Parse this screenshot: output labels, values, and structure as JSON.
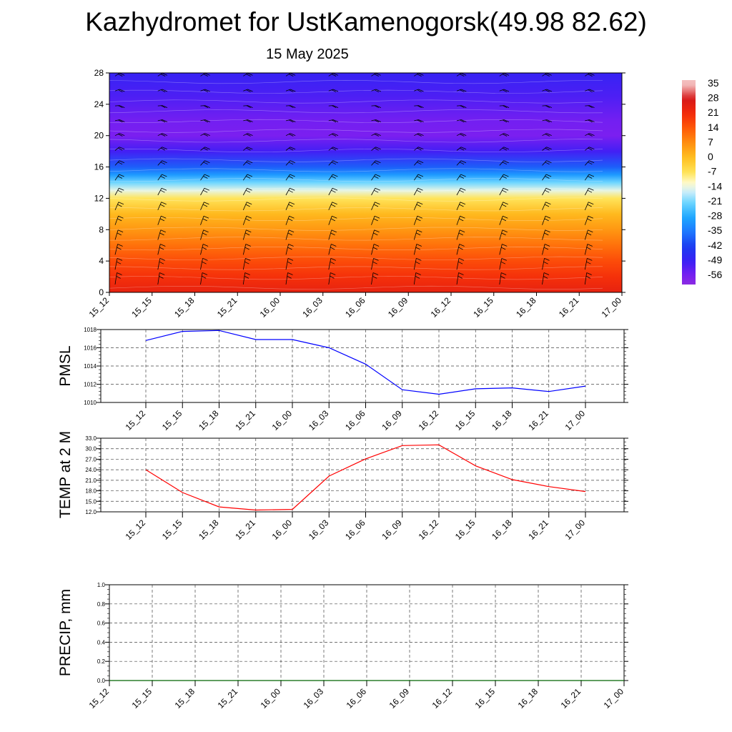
{
  "title": "Kazhydromet for UstKamenogorsk(49.98 82.62)",
  "subtitle": "15 May 2025",
  "time_labels": [
    "15_12",
    "15_15",
    "15_18",
    "15_21",
    "16_00",
    "16_03",
    "16_06",
    "16_09",
    "16_12",
    "16_15",
    "16_18",
    "16_21",
    "17_00"
  ],
  "chart_data": [
    {
      "type": "heatmap",
      "title": "",
      "xlabel": "",
      "ylabel": "",
      "x": [
        "15_12",
        "15_15",
        "15_18",
        "15_21",
        "16_00",
        "16_03",
        "16_06",
        "16_09",
        "16_12",
        "16_15",
        "16_18",
        "16_21",
        "17_00"
      ],
      "y_ticks": [
        0,
        4,
        8,
        12,
        16,
        20,
        24,
        28
      ],
      "ylim": [
        0,
        28
      ],
      "temperature_profile": [
        {
          "y": 0,
          "value": 24
        },
        {
          "y": 2,
          "value": 20
        },
        {
          "y": 4,
          "value": 16
        },
        {
          "y": 6,
          "value": 11
        },
        {
          "y": 8,
          "value": 6
        },
        {
          "y": 10,
          "value": 1
        },
        {
          "y": 12,
          "value": -7
        },
        {
          "y": 13,
          "value": -14
        },
        {
          "y": 14,
          "value": -21
        },
        {
          "y": 15,
          "value": -30
        },
        {
          "y": 16,
          "value": -38
        },
        {
          "y": 18,
          "value": -50
        },
        {
          "y": 20,
          "value": -56
        },
        {
          "y": 22,
          "value": -55
        },
        {
          "y": 25,
          "value": -51
        },
        {
          "y": 28,
          "value": -48
        }
      ],
      "colorbar_labels": [
        "35",
        "28",
        "21",
        "14",
        "7",
        "0",
        "-7",
        "-14",
        "-21",
        "-28",
        "-35",
        "-42",
        "-49",
        "-56"
      ],
      "overlay": "wind barbs"
    },
    {
      "type": "line",
      "ylabel": "PMSL",
      "x": [
        "15_12",
        "15_15",
        "15_18",
        "15_21",
        "16_00",
        "16_03",
        "16_06",
        "16_09",
        "16_12",
        "16_15",
        "16_18",
        "16_21",
        "17_00"
      ],
      "ylim": [
        1010,
        1018
      ],
      "y_ticks": [
        "1010",
        "1012",
        "1014",
        "1016",
        "1018"
      ],
      "series": [
        {
          "color": "#0000ff",
          "values": [
            1016.8,
            1017.8,
            1017.9,
            1016.9,
            1016.9,
            1016.0,
            1014.2,
            1011.4,
            1010.9,
            1011.5,
            1011.6,
            1011.2,
            1011.8
          ]
        }
      ],
      "grid": true
    },
    {
      "type": "line",
      "ylabel": "TEMP at 2 M",
      "x": [
        "15_12",
        "15_15",
        "15_18",
        "15_21",
        "16_00",
        "16_03",
        "16_06",
        "16_09",
        "16_12",
        "16_15",
        "16_18",
        "16_21",
        "17_00"
      ],
      "ylim": [
        12,
        33
      ],
      "y_ticks": [
        "12.0",
        "15.0",
        "18.0",
        "21.0",
        "24.0",
        "27.0",
        "30.0",
        "33.0"
      ],
      "series": [
        {
          "color": "#ff0000",
          "values": [
            24.0,
            17.5,
            13.4,
            12.5,
            12.7,
            22.2,
            27.1,
            30.9,
            31.1,
            25.1,
            21.2,
            19.2,
            17.8
          ]
        }
      ],
      "grid": true
    },
    {
      "type": "line",
      "ylabel": "PRECIP, mm",
      "x": [
        "15_12",
        "15_15",
        "15_18",
        "15_21",
        "16_00",
        "16_03",
        "16_06",
        "16_09",
        "16_12",
        "16_15",
        "16_18",
        "16_21",
        "17_00"
      ],
      "ylim": [
        0,
        1
      ],
      "y_ticks": [
        "0.0",
        "0.2",
        "0.4",
        "0.6",
        "0.8",
        "1.0"
      ],
      "series": [
        {
          "color": "#006400",
          "values": [
            0,
            0,
            0,
            0,
            0,
            0,
            0,
            0,
            0,
            0,
            0,
            0,
            0
          ]
        }
      ],
      "grid": true
    }
  ]
}
